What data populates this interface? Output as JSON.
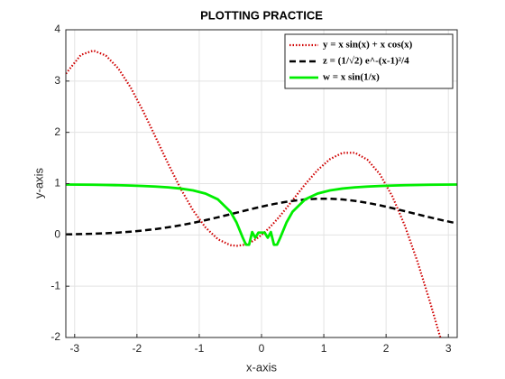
{
  "chart_data": {
    "type": "line",
    "title": "PLOTTING PRACTICE",
    "x_label": "x-axis",
    "y_label": "y-axis",
    "x": [
      -3.14,
      -2.9,
      -2.7,
      -2.5,
      -2.3,
      -2.1,
      -1.9,
      -1.7,
      -1.5,
      -1.3,
      -1.1,
      -0.9,
      -0.7,
      -0.5,
      -0.4,
      -0.3,
      -0.25,
      -0.2,
      -0.15,
      -0.1,
      -0.05,
      0.05,
      0.1,
      0.15,
      0.2,
      0.25,
      0.3,
      0.4,
      0.5,
      0.7,
      0.9,
      1.1,
      1.3,
      1.5,
      1.7,
      1.9,
      2.1,
      2.3,
      2.5,
      2.7,
      2.9,
      3.14
    ],
    "series": [
      {
        "name": "y = x sin(x) + x cos(x)",
        "color": "#d00000",
        "dash": "dotted",
        "values": [
          3.145,
          3.51,
          3.595,
          3.499,
          3.248,
          2.873,
          2.412,
          1.905,
          1.39,
          0.905,
          0.481,
          0.146,
          -0.084,
          -0.199,
          -0.213,
          -0.198,
          -0.18,
          -0.156,
          -0.126,
          -0.09,
          -0.047,
          0.052,
          0.11,
          0.171,
          0.236,
          0.304,
          0.375,
          0.524,
          0.679,
          0.986,
          1.264,
          1.479,
          1.6,
          1.602,
          1.467,
          1.184,
          0.753,
          0.183,
          -0.507,
          -1.287,
          -2.122,
          -3.145
        ]
      },
      {
        "name": "z = (1/√2) e^-(x-1)²/4",
        "color": "#000000",
        "dash": "dashed",
        "values": [
          0.0097,
          0.0158,
          0.0231,
          0.0331,
          0.0465,
          0.064,
          0.0864,
          0.1143,
          0.1482,
          0.1884,
          0.2348,
          0.2868,
          0.3433,
          0.4029,
          0.4332,
          0.4634,
          0.4785,
          0.4933,
          0.5081,
          0.5225,
          0.5368,
          0.5643,
          0.5775,
          0.5903,
          0.6026,
          0.6143,
          0.6256,
          0.6462,
          0.6643,
          0.6914,
          0.7053,
          0.7053,
          0.6914,
          0.6643,
          0.6256,
          0.5775,
          0.5225,
          0.4634,
          0.4029,
          0.3433,
          0.2868,
          0.225
        ]
      },
      {
        "name": "w = x sin(1/x)",
        "color": "#00ee00",
        "dash": "solid",
        "values": [
          0.983,
          0.9805,
          0.9774,
          0.9735,
          0.9688,
          0.9627,
          0.9544,
          0.9433,
          0.9276,
          0.9044,
          0.8679,
          0.8065,
          0.6929,
          0.4546,
          0.2394,
          -0.0572,
          -0.1892,
          -0.1918,
          0.0562,
          -0.0544,
          0.0456,
          0.0456,
          -0.0544,
          0.0562,
          -0.1918,
          -0.1892,
          -0.0572,
          0.2394,
          0.4546,
          0.6929,
          0.8065,
          0.8679,
          0.9044,
          0.9276,
          0.9433,
          0.9544,
          0.9627,
          0.9688,
          0.9735,
          0.9774,
          0.9805,
          0.983
        ]
      }
    ],
    "xlim": [
      -3.1416,
      3.1416
    ],
    "ylim": [
      -2,
      4
    ],
    "xticks": [
      -3,
      -2,
      -1,
      0,
      1,
      2,
      3
    ],
    "yticks": [
      -2,
      -1,
      0,
      1,
      2,
      3,
      4
    ],
    "grid": true,
    "legend": "upper right"
  }
}
